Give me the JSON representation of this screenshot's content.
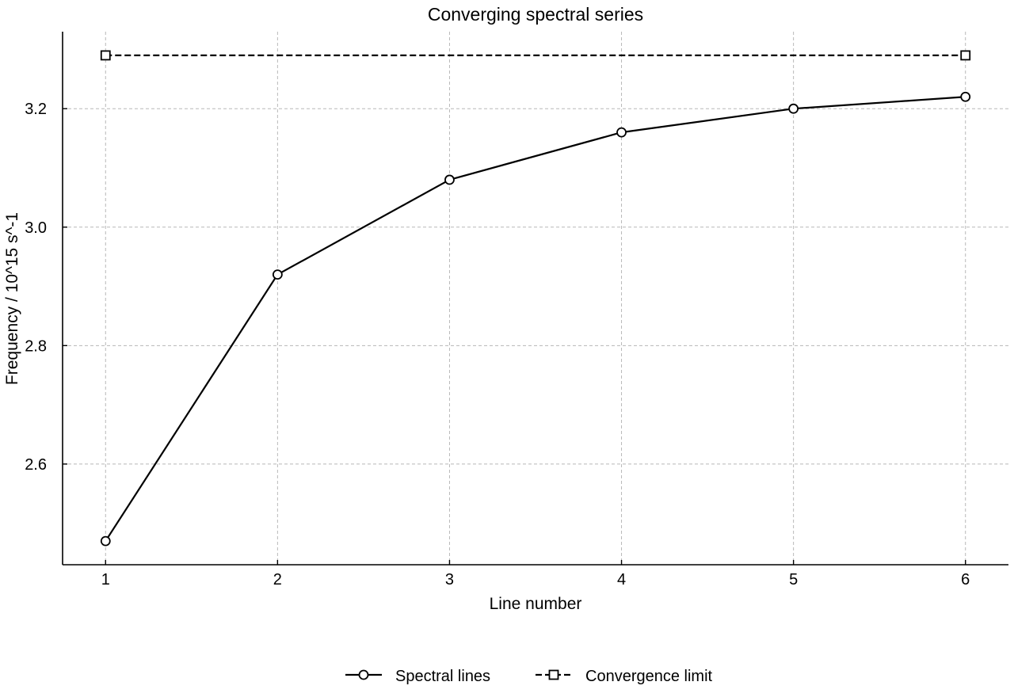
{
  "chart_data": {
    "type": "line",
    "title": "Converging spectral series",
    "xlabel": "Line number",
    "ylabel": "Frequency / 10^15 s^-1",
    "x": [
      1,
      2,
      3,
      4,
      5,
      6
    ],
    "xlim": [
      0.75,
      6.25
    ],
    "ylim": [
      2.43,
      3.33
    ],
    "xticks": [
      1,
      2,
      3,
      4,
      5,
      6
    ],
    "yticks": [
      2.6,
      2.8,
      3.0,
      3.2
    ],
    "ytick_labels": [
      "2.6",
      "2.8",
      "3.0",
      "3.2"
    ],
    "grid": true,
    "legend_position": "bottom-center",
    "series": [
      {
        "name": "Spectral lines",
        "x": [
          1,
          2,
          3,
          4,
          5,
          6
        ],
        "values": [
          2.47,
          2.92,
          3.08,
          3.16,
          3.2,
          3.22
        ],
        "line_style": "solid",
        "marker": "circle",
        "color": "#000000"
      },
      {
        "name": "Convergence limit",
        "x": [
          1,
          6
        ],
        "values": [
          3.29,
          3.29
        ],
        "line_style": "dashed",
        "marker": "square",
        "color": "#000000"
      }
    ]
  }
}
